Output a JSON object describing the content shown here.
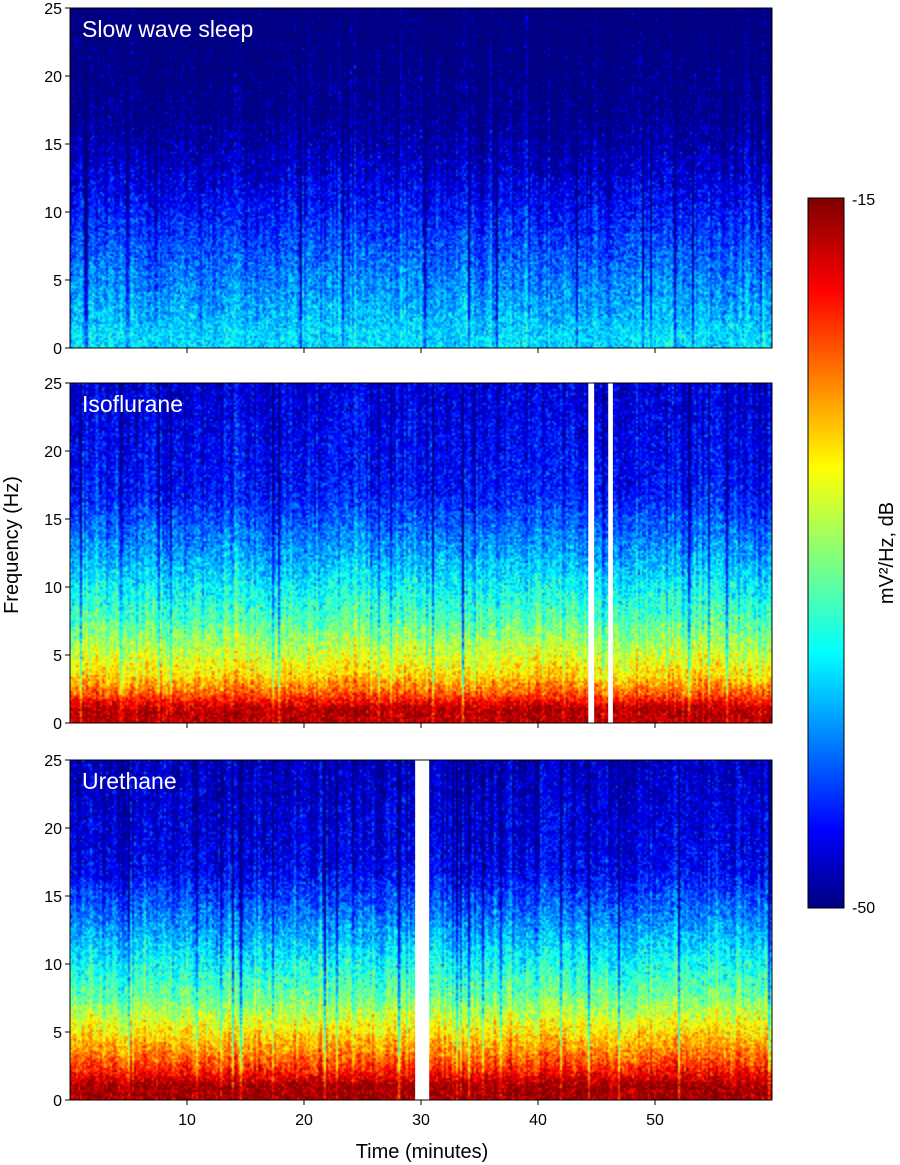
{
  "chart_data": {
    "type": "heatmap",
    "ylabel": "Frequency (Hz)",
    "xlabel": "Time (minutes)",
    "xlim": [
      0,
      60
    ],
    "ylim": [
      0,
      25
    ],
    "x_ticks": [
      10,
      20,
      30,
      40,
      50
    ],
    "y_ticks": [
      0,
      5,
      10,
      15,
      20,
      25
    ],
    "colorbar": {
      "label": "mV²/Hz, dB",
      "min": -50,
      "max": -15,
      "min_label": "-50",
      "max_label": "-15",
      "colormap": "jet"
    },
    "panels": [
      {
        "title": "Slow wave sleep",
        "description_levels": {
          "band_0_2_hz": -38,
          "band_2_5_hz": -40,
          "band_5_10_hz": -43,
          "band_10_15_hz": -47,
          "band_above_15_hz": -50
        },
        "gaps_minutes": []
      },
      {
        "title": "Isoflurane",
        "description_levels": {
          "band_0_2_hz": -17,
          "band_2_5_hz": -27,
          "band_5_10_hz": -34,
          "band_10_15_hz": -40,
          "band_above_15_hz": -45
        },
        "gaps_minutes": [
          [
            44.3,
            44.8
          ],
          [
            46.0,
            46.4
          ]
        ]
      },
      {
        "title": "Urethane",
        "description_levels": {
          "band_0_2_hz": -16,
          "band_2_5_hz": -24,
          "band_5_10_hz": -33,
          "band_10_15_hz": -40,
          "band_above_15_hz": -46
        },
        "gaps_minutes": [
          [
            29.5,
            30.7
          ]
        ]
      }
    ]
  }
}
